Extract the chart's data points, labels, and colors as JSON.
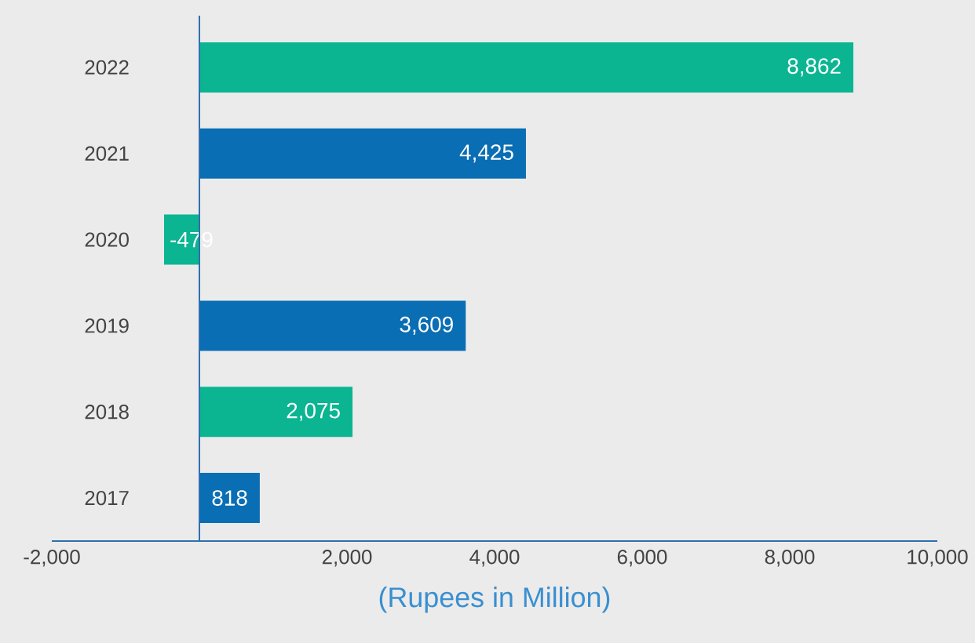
{
  "chart_data": {
    "type": "bar",
    "orientation": "horizontal",
    "categories": [
      "2022",
      "2021",
      "2020",
      "2019",
      "2018",
      "2017"
    ],
    "values": [
      8862,
      4425,
      -479,
      3609,
      2075,
      818
    ],
    "value_labels": [
      "8,862",
      "4,425",
      "-479",
      "3,609",
      "2,075",
      "818"
    ],
    "colors": [
      "#0bb592",
      "#0a6eb4",
      "#0bb592",
      "#0a6eb4",
      "#0bb592",
      "#0a6eb4"
    ],
    "xlim": [
      -2000,
      10000
    ],
    "xticks": [
      {
        "value": -2000,
        "label": "-2,000"
      },
      {
        "value": 2000,
        "label": "2,000"
      },
      {
        "value": 4000,
        "label": "4,000"
      },
      {
        "value": 6000,
        "label": "6,000"
      },
      {
        "value": 8000,
        "label": "8,000"
      },
      {
        "value": 10000,
        "label": "10,000"
      }
    ],
    "ref_lines": [
      {
        "axis": "x",
        "value": 0,
        "color": "#2f6faf"
      }
    ],
    "xlabel": "(Rupees in Million)"
  }
}
